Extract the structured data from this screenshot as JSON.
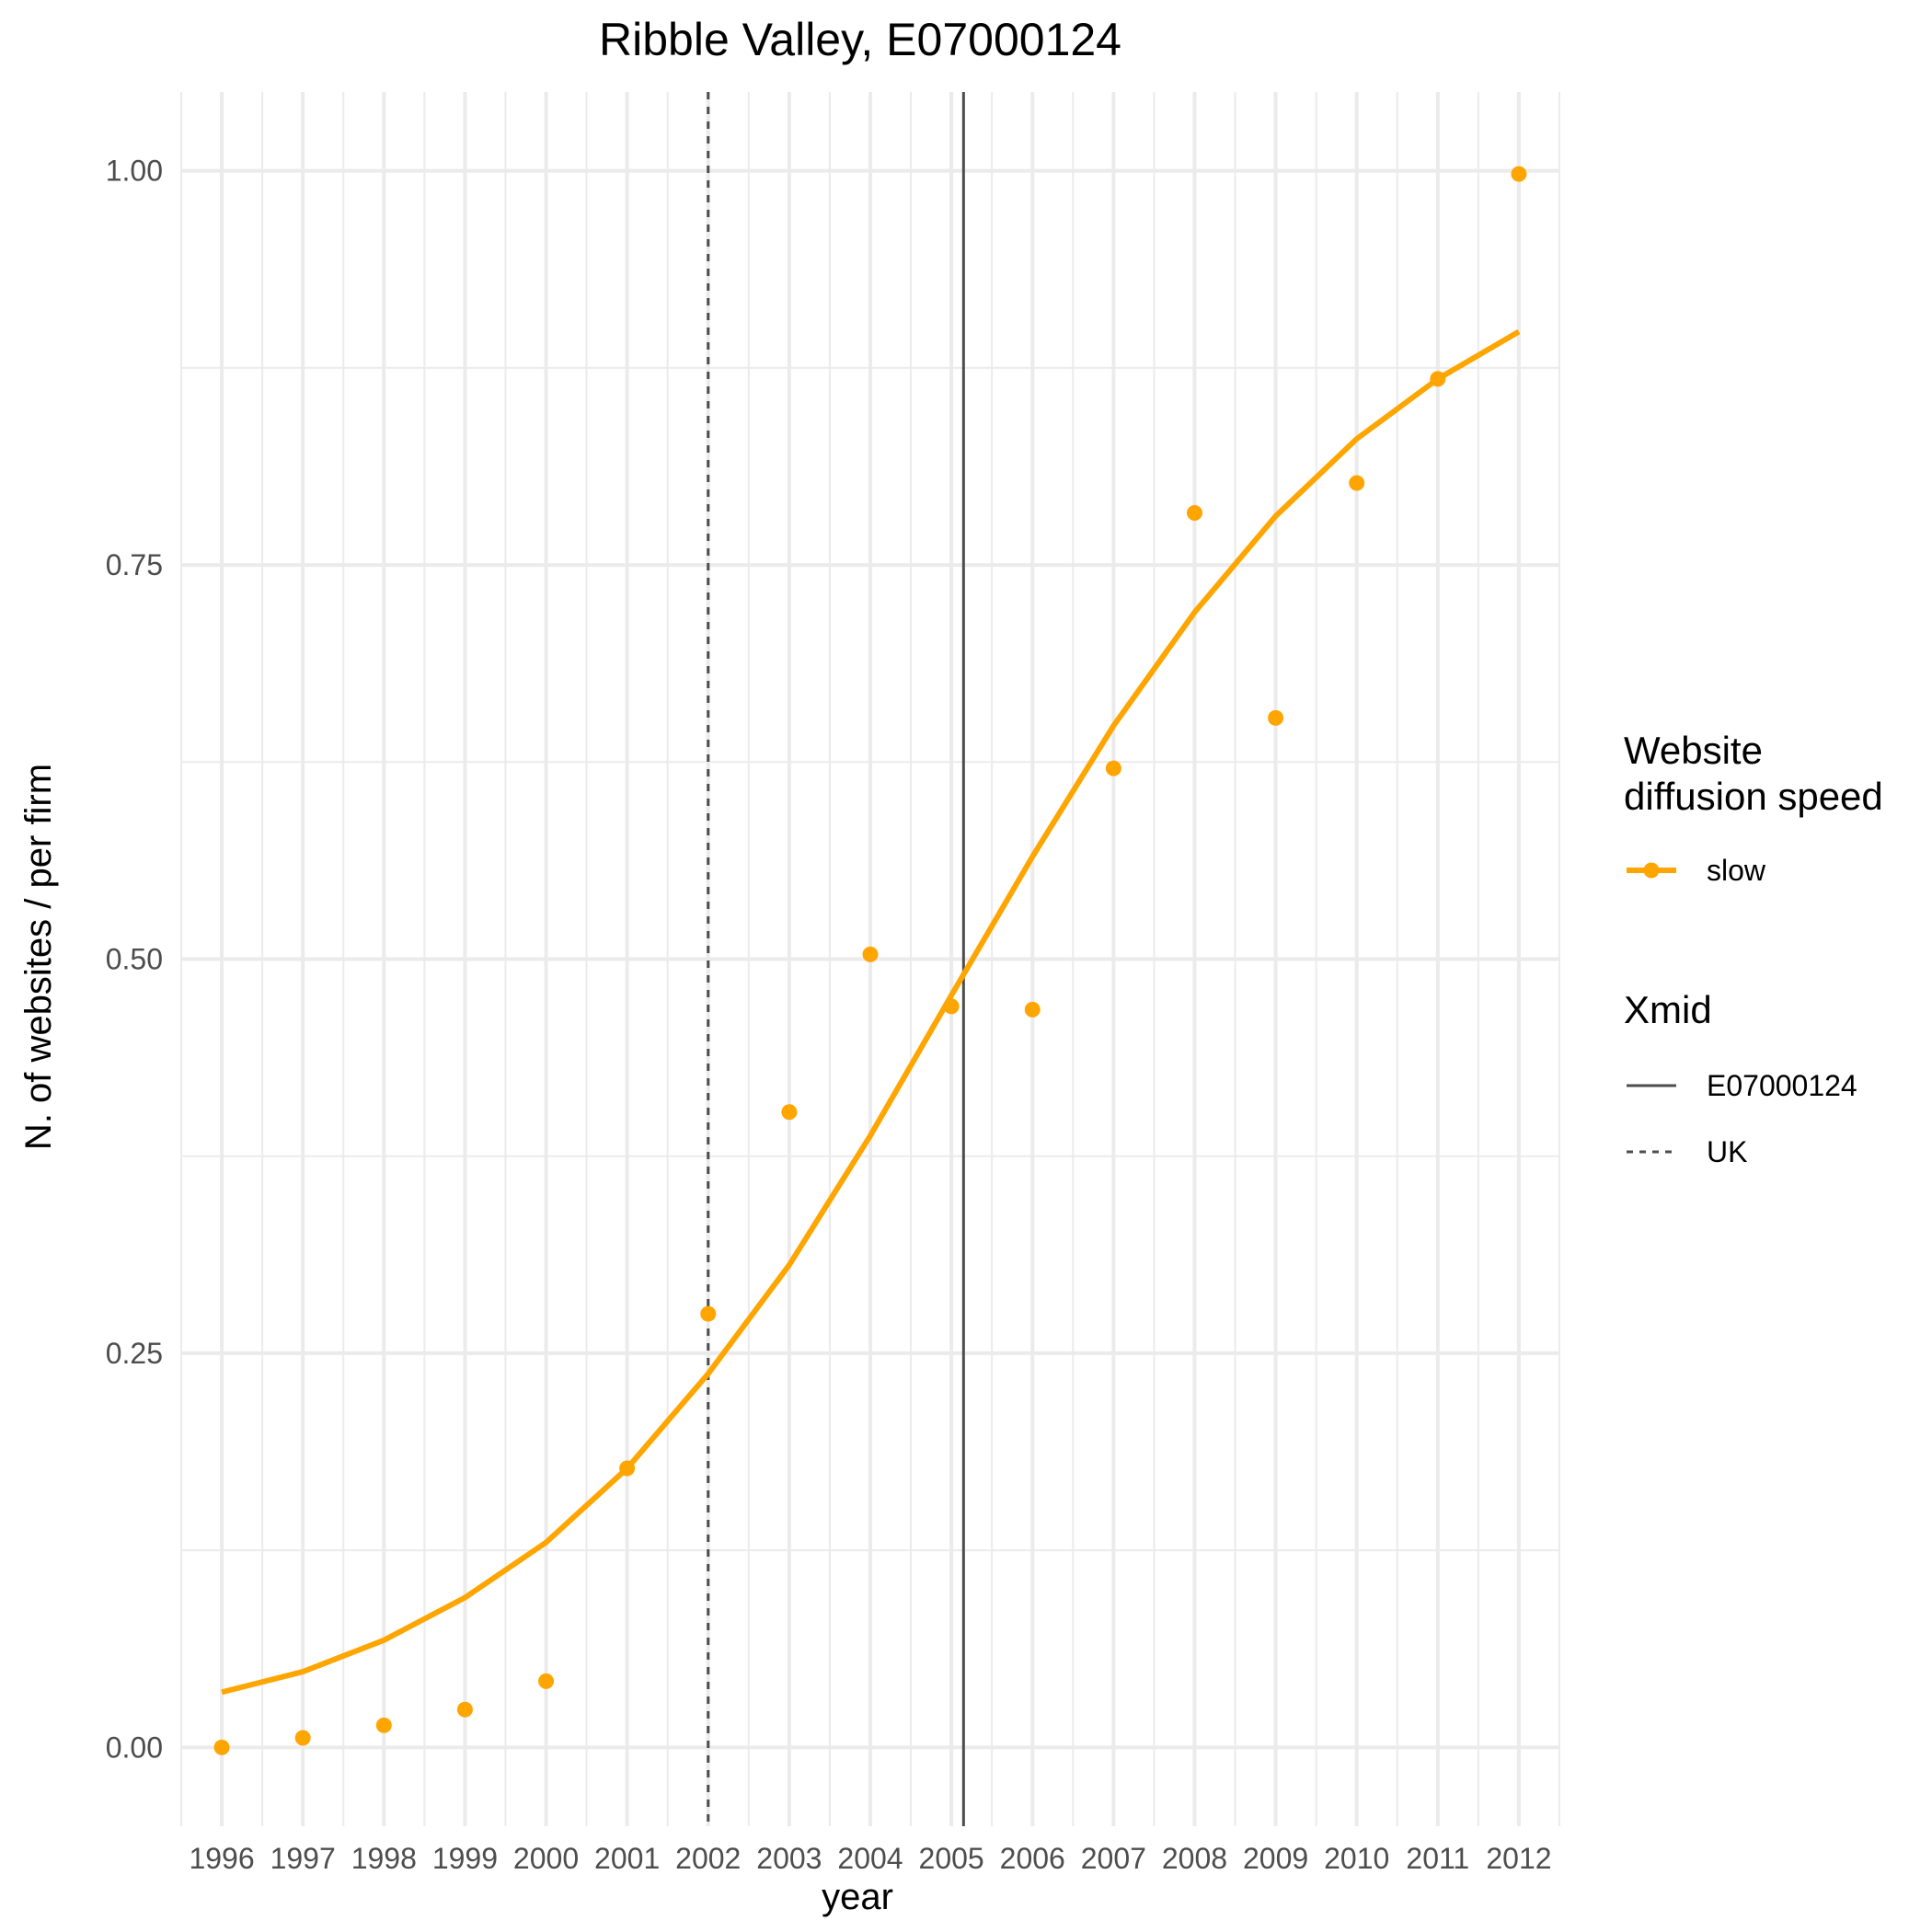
{
  "chart_data": {
    "type": "line",
    "title": "Ribble Valley, E07000124",
    "xlabel": "year",
    "ylabel": "N. of websites / per firm",
    "xlim": [
      1995.5,
      2012.5
    ],
    "ylim": [
      -0.05,
      1.05
    ],
    "x_ticks": [
      "1996",
      "1997",
      "1998",
      "1999",
      "2000",
      "2001",
      "2002",
      "2003",
      "2004",
      "2005",
      "2006",
      "2007",
      "2008",
      "2009",
      "2010",
      "2011",
      "2012"
    ],
    "y_ticks": [
      "0.00",
      "0.25",
      "0.50",
      "0.75",
      "1.00"
    ],
    "grid": true,
    "legend_position": "right",
    "colors": {
      "series": "#FFA500",
      "vline": "#4d4d4d",
      "grid": "#ebebeb"
    },
    "series": [
      {
        "name": "slow",
        "fitted": [
          0.035,
          0.048,
          0.068,
          0.095,
          0.13,
          0.177,
          0.237,
          0.306,
          0.388,
          0.477,
          0.565,
          0.648,
          0.72,
          0.781,
          0.83,
          0.868,
          0.898
        ],
        "observed": [
          0.0,
          0.006,
          0.014,
          0.024,
          0.042,
          0.177,
          0.275,
          0.403,
          0.503,
          0.47,
          0.468,
          0.621,
          0.783,
          0.653,
          0.802,
          0.868,
          0.998
        ]
      }
    ],
    "vlines": [
      {
        "name": "E07000124",
        "x": 2005.15,
        "linetype": "solid"
      },
      {
        "name": "UK",
        "x": 2002.0,
        "linetype": "dashed"
      }
    ],
    "legend": {
      "speed_title_line1": "Website",
      "speed_title_line2": "diffusion speed",
      "speed_items": [
        "slow"
      ],
      "xmid_title": "Xmid",
      "xmid_items": [
        "E07000124",
        "UK"
      ]
    }
  }
}
